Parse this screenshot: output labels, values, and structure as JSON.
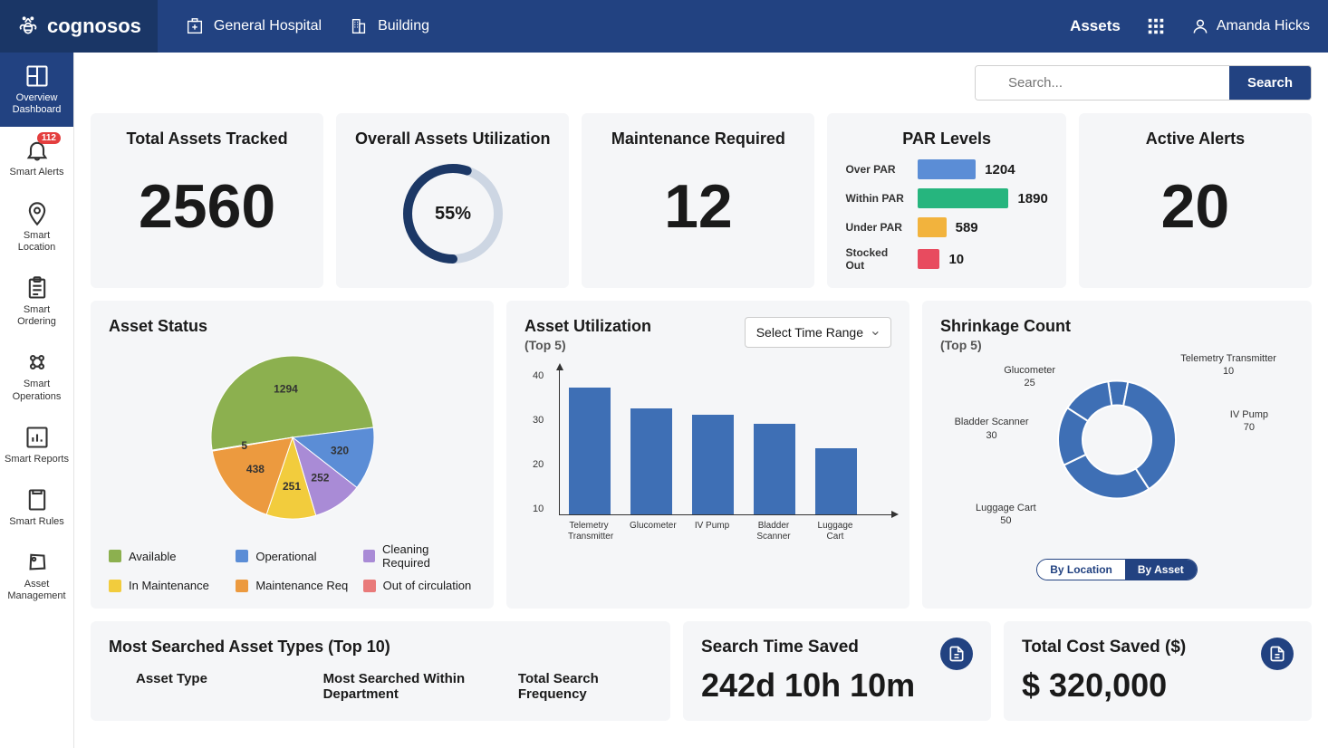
{
  "brand": "cognosos",
  "top": {
    "hospital": "General Hospital",
    "building": "Building",
    "assets": "Assets",
    "user": "Amanda Hicks"
  },
  "sidebar": {
    "items": [
      {
        "label": "Overview Dashboard",
        "name": "overview-dashboard"
      },
      {
        "label": "Smart Alerts",
        "name": "smart-alerts",
        "badge": "112"
      },
      {
        "label": "Smart Location",
        "name": "smart-location"
      },
      {
        "label": "Smart Ordering",
        "name": "smart-ordering"
      },
      {
        "label": "Smart Operations",
        "name": "smart-operations"
      },
      {
        "label": "Smart Reports",
        "name": "smart-reports"
      },
      {
        "label": "Smart Rules",
        "name": "smart-rules"
      },
      {
        "label": "Asset Management",
        "name": "asset-management"
      }
    ]
  },
  "search": {
    "placeholder": "Search...",
    "button": "Search"
  },
  "kpi": {
    "total_assets": {
      "title": "Total Assets Tracked",
      "value": "2560"
    },
    "utilization": {
      "title": "Overall Assets Utilization",
      "value": "55%",
      "percent": 55,
      "ring_color": "#1c3866",
      "ring_bg": "#cdd6e3",
      "ring_width": 10
    },
    "maintenance": {
      "title": "Maintenance Required",
      "value": "12"
    },
    "alerts": {
      "title": "Active Alerts",
      "value": "20"
    }
  },
  "par": {
    "title": "PAR Levels",
    "max": 1890,
    "rows": [
      {
        "label": "Over PAR",
        "value": 1204,
        "color": "#5b8dd6"
      },
      {
        "label": "Within PAR",
        "value": 1890,
        "color": "#26b57e"
      },
      {
        "label": "Under PAR",
        "value": 589,
        "color": "#f2b33d"
      },
      {
        "label": "Stocked Out",
        "value": 10,
        "color": "#e84b5f"
      }
    ]
  },
  "asset_status": {
    "title": "Asset Status",
    "slices": [
      {
        "label": "Available",
        "value": 1294,
        "color": "#8cb04f"
      },
      {
        "label": "Operational",
        "value": 320,
        "color": "#5b8dd6"
      },
      {
        "label": "Cleaning Required",
        "value": 252,
        "color": "#a98bd6"
      },
      {
        "label": "In Maintenance",
        "value": 251,
        "color": "#f2cc3d"
      },
      {
        "label": "Maintenance Req",
        "value": 438,
        "color": "#ec9a3f"
      },
      {
        "label": "Out of circulation",
        "value": 5,
        "color": "#e97a7a"
      }
    ],
    "legend": [
      {
        "label": "Available",
        "color": "#8cb04f"
      },
      {
        "label": "Operational",
        "color": "#5b8dd6"
      },
      {
        "label": "Cleaning Required",
        "color": "#a98bd6"
      },
      {
        "label": "In Maintenance",
        "color": "#f2cc3d"
      },
      {
        "label": "Maintenance Req",
        "color": "#ec9a3f"
      },
      {
        "label": "Out of circulation",
        "color": "#e97a7a"
      }
    ]
  },
  "asset_util": {
    "title": "Asset Utilization",
    "sub": "(Top 5)",
    "select": "Select Time Range",
    "ymax": 45,
    "yticks": [
      "10",
      "20",
      "30",
      "40"
    ],
    "bar_color": "#3e6fb5",
    "bars": [
      {
        "label": "Telemetry Transmitter",
        "value": 42
      },
      {
        "label": "Glucometer",
        "value": 35
      },
      {
        "label": "IV Pump",
        "value": 33
      },
      {
        "label": "Bladder Scanner",
        "value": 30
      },
      {
        "label": "Luggage Cart",
        "value": 22
      }
    ]
  },
  "shrinkage": {
    "title": "Shrinkage Count",
    "sub": "(Top 5)",
    "color": "#3e6fb5",
    "slices": [
      {
        "label": "Telemetry Transmitter",
        "value": 10
      },
      {
        "label": "IV Pump",
        "value": 70
      },
      {
        "label": "Luggage Cart",
        "value": 50
      },
      {
        "label": "Bladder Scanner",
        "value": 30
      },
      {
        "label": "Glucometer",
        "value": 25
      }
    ],
    "toggle": {
      "a": "By Location",
      "b": "By Asset"
    }
  },
  "searched": {
    "title": "Most Searched Asset Types (Top 10)",
    "cols": [
      "Asset Type",
      "Most Searched Within Department",
      "Total Search Frequency"
    ]
  },
  "time_saved": {
    "title": "Search Time Saved",
    "value": "242d 10h 10m"
  },
  "cost_saved": {
    "title": "Total Cost Saved ($)",
    "value": "$ 320,000"
  }
}
